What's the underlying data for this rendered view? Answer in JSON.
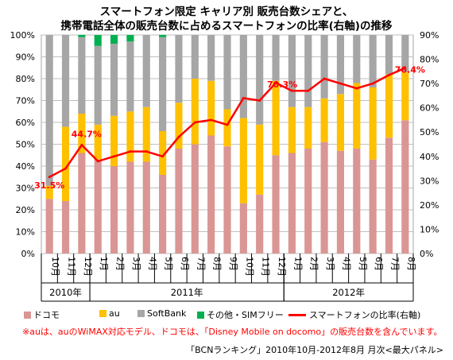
{
  "titles": {
    "line1": "スマートフォン限定 キャリア別 販売台数シェアと、",
    "line2": "携帯電話全体の販売台数に占めるスマートフォンの比率(右軸)の推移"
  },
  "legend": {
    "docomo": "ドコモ",
    "au": "au",
    "softbank": "SoftBank",
    "other": "その他・SIMフリー",
    "ratio": "スマートフォンの比率(右軸)"
  },
  "note": "※auは、auのWiMAX対応モデル、ドコモは、「Disney Mobile on docomo」の販売台数を含んでいます。",
  "source": "「BCNランキング」2010年10月-2012年8月 月次<最大パネル>",
  "colors": {
    "docomo": "#d99694",
    "au": "#ffc000",
    "softbank": "#a6a6a6",
    "other": "#00b050",
    "ratio": "#ff0000",
    "grid": "#bfbfbf"
  },
  "chart_data": {
    "type": "bar",
    "stacked": true,
    "categories": [
      "10月",
      "11月",
      "12月",
      "1月",
      "2月",
      "3月",
      "4月",
      "5月",
      "6月",
      "7月",
      "8月",
      "9月",
      "10月",
      "11月",
      "12月",
      "1月",
      "2月",
      "3月",
      "4月",
      "5月",
      "6月",
      "7月",
      "8月"
    ],
    "year_groups": [
      {
        "label": "2010年",
        "start": 0,
        "end": 2
      },
      {
        "label": "2011年",
        "start": 3,
        "end": 14
      },
      {
        "label": "2012年",
        "start": 15,
        "end": 22
      }
    ],
    "y_left": {
      "ylim": [
        0,
        100
      ],
      "ticks": [
        "0%",
        "10%",
        "20%",
        "30%",
        "40%",
        "50%",
        "60%",
        "70%",
        "80%",
        "90%",
        "100%"
      ]
    },
    "y_right": {
      "ylim": [
        0,
        90
      ],
      "ticks": [
        "0%",
        "10%",
        "20%",
        "30%",
        "40%",
        "50%",
        "60%",
        "70%",
        "80%",
        "90%"
      ]
    },
    "series": [
      {
        "name": "ドコモ",
        "values": [
          25,
          24,
          46,
          43,
          40,
          42,
          42,
          36,
          48,
          50,
          54,
          49,
          23,
          27,
          45,
          46,
          48,
          51,
          47,
          48,
          43,
          53,
          61
        ]
      },
      {
        "name": "au",
        "values": [
          6,
          34,
          18,
          16,
          23,
          23,
          25,
          20,
          21,
          30,
          25,
          17,
          39,
          32,
          34,
          21,
          19,
          20,
          26,
          30,
          33,
          29,
          22
        ]
      },
      {
        "name": "SoftBank",
        "values": [
          69,
          42,
          35,
          36,
          33,
          32,
          33,
          43,
          31,
          20,
          21,
          34,
          38,
          41,
          21,
          33,
          33,
          29,
          27,
          22,
          24,
          18,
          17
        ]
      },
      {
        "name": "その他・SIMフリー",
        "values": [
          0,
          0,
          1,
          5,
          4,
          3,
          0,
          1,
          0,
          0,
          0,
          0,
          0,
          0,
          0,
          0,
          0,
          0,
          0,
          0,
          0,
          0,
          0
        ]
      }
    ],
    "line": {
      "name": "スマートフォンの比率(右軸)",
      "values": [
        31.5,
        35,
        44.7,
        38,
        40,
        42,
        42,
        40,
        48,
        54,
        55,
        53,
        64,
        63,
        70.3,
        67,
        67,
        72,
        70,
        68,
        70,
        73.5,
        76.4
      ]
    },
    "data_labels": [
      {
        "index": 0,
        "text": "31.5%"
      },
      {
        "index": 2,
        "text": "44.7%"
      },
      {
        "index": 14,
        "text": "70.3%"
      },
      {
        "index": 22,
        "text": "76.4%"
      }
    ]
  }
}
